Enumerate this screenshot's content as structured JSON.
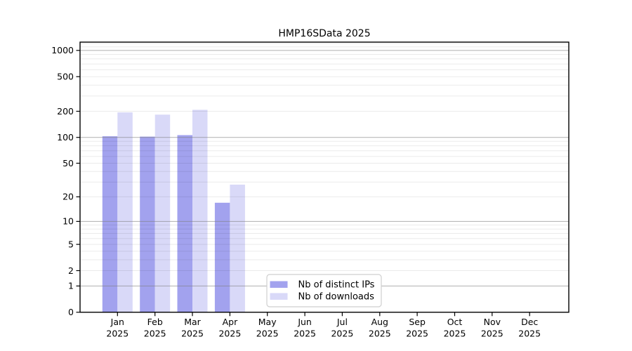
{
  "figure": {
    "background": "#ffffff"
  },
  "chart_data": {
    "type": "bar",
    "title": "HMP16SData 2025",
    "categories": [
      "Jan",
      "Feb",
      "Mar",
      "Apr",
      "May",
      "Jun",
      "Jul",
      "Aug",
      "Sep",
      "Oct",
      "Nov",
      "Dec"
    ],
    "x_tick_second_line": "2025",
    "series": [
      {
        "name": "Nb of distinct IPs",
        "color": "#a2a2ee",
        "values": [
          103,
          102,
          106,
          17,
          0,
          0,
          0,
          0,
          0,
          0,
          0,
          0
        ]
      },
      {
        "name": "Nb of downloads",
        "color": "#d9d9f8",
        "values": [
          194,
          183,
          208,
          28,
          0,
          0,
          0,
          0,
          0,
          0,
          0,
          0
        ]
      }
    ],
    "y_scale": "log10(1+y)",
    "y_tick_labels": [
      0,
      1,
      2,
      5,
      10,
      20,
      50,
      100,
      200,
      500,
      1000
    ],
    "y_major_gridlines": [
      1,
      10,
      100,
      1000
    ],
    "y_minor_gridlines": [
      2,
      3,
      4,
      5,
      6,
      7,
      8,
      9,
      20,
      30,
      40,
      50,
      60,
      70,
      80,
      90,
      200,
      300,
      400,
      500,
      600,
      700,
      800,
      900,
      1100,
      1200
    ],
    "ylim_top": 1247,
    "grid": true,
    "legend": {
      "position": "inside-bottom-center",
      "background": "#ffffff",
      "border_color": "#cfcfcf"
    },
    "colors": {
      "axis": "#000000",
      "major_grid": "rgba(128,128,128,0.55)",
      "minor_grid": "rgba(0,0,0,0.08)",
      "text": "#000000"
    }
  }
}
